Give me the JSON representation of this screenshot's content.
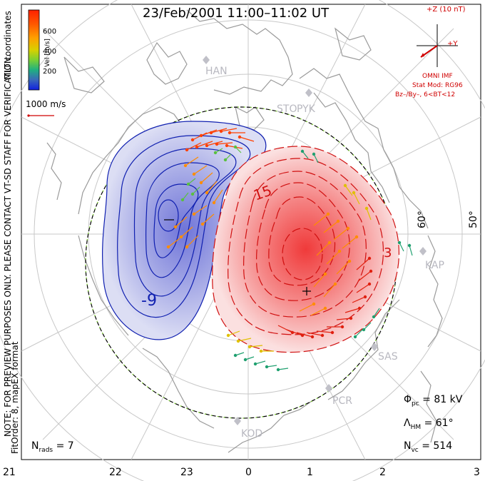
{
  "title": "23/Feb/2001 11:00–11:02 UT",
  "colorbar": {
    "axis_label": "Vel [m/s]",
    "ticks": [
      "600",
      "400",
      "200"
    ],
    "colors": [
      "#ff2000",
      "#ff7a00",
      "#f0b000",
      "#7fd030",
      "#20b080",
      "#3070c0",
      "#1020e0"
    ]
  },
  "side_text": {
    "coordinates": "MLT coordinates",
    "note": "NOTE: FOR PREVIEW PURPOSES ONLY. PLEASE CONTACT VT-SD STAFF FOR VERIFICATION.",
    "fit": "FitOrder: 8,  mapEX format"
  },
  "reference_vector": {
    "label": "1000 m/s"
  },
  "imf": {
    "z_label": "+Z (10 nT)",
    "y_label": "+Y",
    "source": "OMNI IMF",
    "model": "Stat Mod: RG96",
    "conditions": "Bz–/By–, 6<BT<12",
    "color": "#d00000"
  },
  "radars": [
    "HAN",
    "STO",
    "PYK",
    "KAP",
    "SAS",
    "PCR",
    "KOD"
  ],
  "contours": {
    "negative_label": "-9",
    "positive_label": "15",
    "edge_label": "3",
    "negative_color": "#1020b0",
    "positive_color": "#d01010"
  },
  "latitude_labels": [
    "60°",
    "50°"
  ],
  "mlt_labels": [
    "21",
    "22",
    "23",
    "0",
    "1",
    "2",
    "3"
  ],
  "stats": {
    "phi_pc": {
      "symbol": "Φ",
      "sub": "pc",
      "value": "= 81 kV"
    },
    "lambda_hm": {
      "symbol": "Λ",
      "sub": "HM",
      "value": "= 61°"
    },
    "n_vc": {
      "symbol": "N",
      "sub": "vc",
      "value": "= 514"
    },
    "n_rads": {
      "symbol": "N",
      "sub": "rads",
      "value": "= 7"
    }
  }
}
